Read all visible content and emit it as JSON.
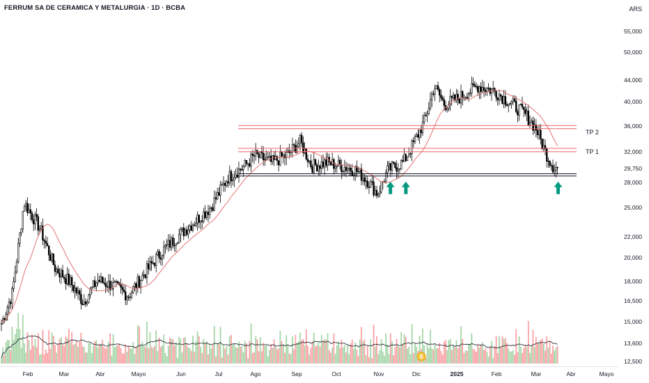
{
  "header": {
    "title": "FERRUM SA DE CERAMICA Y METALURGIA · 1D · BCBA",
    "currency": "ARS"
  },
  "axes": {
    "y_ticks": [
      "55,000",
      "50,000",
      "44,000",
      "40,000",
      "36,000",
      "32,000",
      "29,750",
      "28,000",
      "25,000",
      "22,000",
      "20,000",
      "18,000",
      "16,500",
      "15,000",
      "13,600",
      "12,500"
    ],
    "x_ticks": [
      {
        "label": "Feb",
        "bold": false
      },
      {
        "label": "Mar",
        "bold": false
      },
      {
        "label": "Abr",
        "bold": false
      },
      {
        "label": "Mayo",
        "bold": false
      },
      {
        "label": "Jun",
        "bold": false
      },
      {
        "label": "Jul",
        "bold": false
      },
      {
        "label": "Ago",
        "bold": false
      },
      {
        "label": "Sep",
        "bold": false
      },
      {
        "label": "Oct",
        "bold": false
      },
      {
        "label": "Nov",
        "bold": false
      },
      {
        "label": "Dic",
        "bold": false
      },
      {
        "label": "2025",
        "bold": true
      },
      {
        "label": "Feb",
        "bold": false
      },
      {
        "label": "Mar",
        "bold": false
      },
      {
        "label": "Abr",
        "bold": false
      },
      {
        "label": "Mayo",
        "bold": false
      }
    ]
  },
  "annotations": {
    "tp2_label": "TP 2",
    "tp1_label": "TP 1",
    "dividend_marker": "S"
  },
  "colors": {
    "up_volume": "#a5d6a7",
    "down_volume": "#faa1a4",
    "ma_line": "#e57373",
    "resistance": "#f06060",
    "support": "#131722",
    "arrow": "#089981",
    "candle": "#000000"
  },
  "chart_data": {
    "type": "candlestick",
    "scale": "log",
    "ylim": [
      12500,
      58000
    ],
    "y_ticks": [
      55000,
      50000,
      44000,
      40000,
      36000,
      32000,
      29750,
      28000,
      25000,
      22000,
      20000,
      18000,
      16500,
      15000,
      13600,
      12500
    ],
    "x_ticks": [
      "Feb",
      "Mar",
      "Abr",
      "Mayo",
      "Jun",
      "Jul",
      "Ago",
      "Sep",
      "Oct",
      "Nov",
      "Dic",
      "2025",
      "Feb",
      "Mar",
      "Abr",
      "Mayo"
    ],
    "price_path": [
      [
        "2024-01-08",
        14000
      ],
      [
        "2024-01-20",
        17000
      ],
      [
        "2024-01-29",
        25500
      ],
      [
        "2024-02-10",
        22800
      ],
      [
        "2024-02-22",
        19000
      ],
      [
        "2024-03-05",
        17800
      ],
      [
        "2024-03-15",
        16300
      ],
      [
        "2024-03-26",
        18000
      ],
      [
        "2024-04-08",
        17500
      ],
      [
        "2024-04-19",
        16800
      ],
      [
        "2024-05-01",
        18500
      ],
      [
        "2024-05-15",
        20500
      ],
      [
        "2024-05-28",
        22000
      ],
      [
        "2024-06-10",
        23500
      ],
      [
        "2024-06-22",
        25000
      ],
      [
        "2024-07-05",
        28500
      ],
      [
        "2024-07-18",
        30000
      ],
      [
        "2024-07-26",
        31500
      ],
      [
        "2024-08-08",
        30500
      ],
      [
        "2024-08-20",
        31500
      ],
      [
        "2024-08-30",
        33500
      ],
      [
        "2024-09-08",
        30000
      ],
      [
        "2024-09-20",
        30500
      ],
      [
        "2024-10-01",
        30000
      ],
      [
        "2024-10-12",
        29500
      ],
      [
        "2024-10-22",
        28000
      ],
      [
        "2024-10-29",
        26500
      ],
      [
        "2024-11-06",
        29500
      ],
      [
        "2024-11-18",
        30500
      ],
      [
        "2024-11-28",
        34000
      ],
      [
        "2024-12-05",
        37000
      ],
      [
        "2024-12-12",
        43000
      ],
      [
        "2024-12-20",
        39500
      ],
      [
        "2025-01-02",
        41000
      ],
      [
        "2025-01-15",
        43000
      ],
      [
        "2025-01-28",
        42000
      ],
      [
        "2025-02-08",
        40000
      ],
      [
        "2025-02-20",
        38000
      ],
      [
        "2025-03-01",
        35500
      ],
      [
        "2025-03-08",
        32000
      ],
      [
        "2025-03-14",
        30000
      ],
      [
        "2025-03-18",
        29750
      ]
    ],
    "resistance_tp2": [
      35500,
      36000
    ],
    "resistance_tp1": [
      32000,
      32500
    ],
    "support": [
      28700,
      29000
    ],
    "entry_arrows": [
      "2024-11-08",
      "2024-11-20",
      "2025-03-18"
    ],
    "volume_legend": "histogram with moving average line"
  }
}
